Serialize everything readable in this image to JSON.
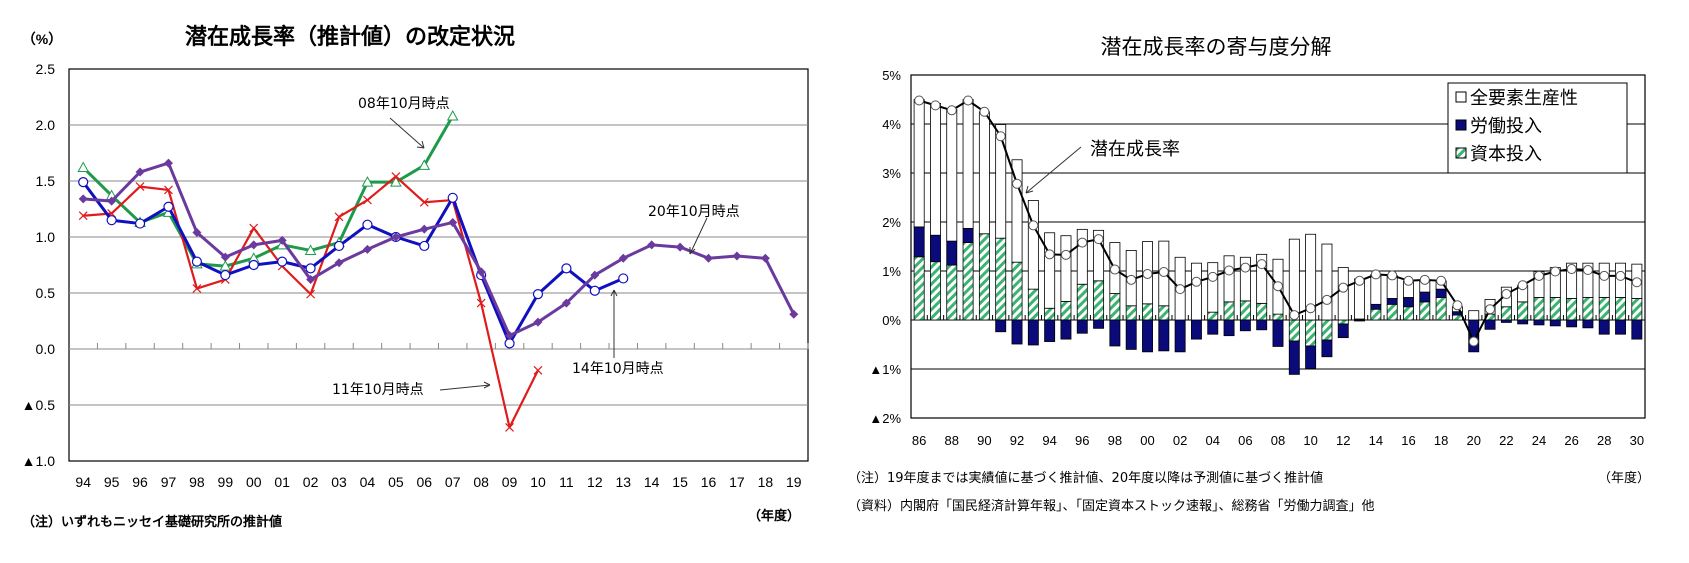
{
  "chart_data": [
    {
      "type": "line",
      "title": "潜在成長率（推計値）の改定状況",
      "ylabel": "（%）",
      "xlabel": "（年度）",
      "ylim": [
        -1.0,
        2.5
      ],
      "y_ticks": [
        2.5,
        2.0,
        1.5,
        1.0,
        0.5,
        0.0,
        -0.5,
        -1.0
      ],
      "y_tick_labels": [
        "2.5",
        "2.0",
        "1.5",
        "1.0",
        "0.5",
        "0.0",
        "▲0.5",
        "▲1.0"
      ],
      "grid": true,
      "categories": [
        "94",
        "95",
        "96",
        "97",
        "98",
        "99",
        "00",
        "01",
        "02",
        "03",
        "04",
        "05",
        "06",
        "07",
        "08",
        "09",
        "10",
        "11",
        "12",
        "13",
        "14",
        "15",
        "16",
        "17",
        "18",
        "19"
      ],
      "series": [
        {
          "name": "08年10月時点",
          "color": "#1f9a4a",
          "marker": "triangle-open",
          "values": [
            1.62,
            1.37,
            1.13,
            1.22,
            0.76,
            0.74,
            0.81,
            0.93,
            0.88,
            0.95,
            1.49,
            1.49,
            1.64,
            2.08,
            null,
            null,
            null,
            null,
            null,
            null,
            null,
            null,
            null,
            null,
            null,
            null
          ]
        },
        {
          "name": "11年10月時点",
          "color": "#e01b1b",
          "marker": "x",
          "values": [
            1.19,
            1.21,
            1.45,
            1.42,
            0.54,
            0.62,
            1.08,
            0.74,
            0.49,
            1.18,
            1.33,
            1.54,
            1.31,
            1.33,
            0.41,
            -0.7,
            -0.19,
            null,
            null,
            null,
            null,
            null,
            null,
            null,
            null,
            null
          ]
        },
        {
          "name": "14年10月時点",
          "color": "#1010c0",
          "marker": "circle-open",
          "values": [
            1.49,
            1.15,
            1.12,
            1.27,
            0.78,
            0.66,
            0.75,
            0.78,
            0.72,
            0.92,
            1.11,
            1.0,
            0.92,
            1.35,
            0.66,
            0.05,
            0.49,
            0.72,
            0.52,
            0.63,
            null,
            null,
            null,
            null,
            null,
            null
          ]
        },
        {
          "name": "20年10月時点",
          "color": "#6a3a9e",
          "marker": "diamond",
          "values": [
            1.34,
            1.32,
            1.58,
            1.66,
            1.04,
            0.82,
            0.93,
            0.97,
            0.62,
            0.77,
            0.89,
            1.0,
            1.07,
            1.13,
            0.69,
            0.12,
            0.24,
            0.41,
            0.66,
            0.81,
            0.93,
            0.91,
            0.81,
            0.83,
            0.81,
            0.31
          ]
        }
      ],
      "annotations": [
        "08年10月時点",
        "11年10月時点",
        "14年10月時点",
        "20年10月時点"
      ],
      "note": "（注）いずれもニッセイ基礎研究所の推計値"
    },
    {
      "type": "bar",
      "stacked": true,
      "title": "潜在成長率の寄与度分解",
      "xlabel": "（年度）",
      "ylim": [
        -2,
        5
      ],
      "y_ticks": [
        5,
        4,
        3,
        2,
        1,
        0,
        -1,
        -2
      ],
      "y_tick_labels": [
        "5%",
        "4%",
        "3%",
        "2%",
        "1%",
        "0%",
        "▲1%",
        "▲2%"
      ],
      "grid": true,
      "legend_position": "top-right",
      "categories": [
        "86",
        "87",
        "88",
        "89",
        "90",
        "91",
        "92",
        "93",
        "94",
        "95",
        "96",
        "97",
        "98",
        "99",
        "00",
        "01",
        "02",
        "03",
        "04",
        "05",
        "06",
        "07",
        "08",
        "09",
        "10",
        "11",
        "12",
        "13",
        "14",
        "15",
        "16",
        "17",
        "18",
        "19",
        "20",
        "21",
        "22",
        "23",
        "24",
        "25",
        "26",
        "27",
        "28",
        "29",
        "30"
      ],
      "x_tick_labels": [
        "86",
        "88",
        "90",
        "92",
        "94",
        "96",
        "98",
        "00",
        "02",
        "04",
        "06",
        "08",
        "10",
        "12",
        "14",
        "16",
        "18",
        "20",
        "22",
        "24",
        "26",
        "28",
        "30"
      ],
      "series": [
        {
          "name": "資本投入",
          "color": "#3cb371",
          "pattern": "hatched",
          "values": [
            1.29,
            1.19,
            1.12,
            1.58,
            1.76,
            1.67,
            1.18,
            0.63,
            0.24,
            0.38,
            0.73,
            0.8,
            0.54,
            0.29,
            0.33,
            0.29,
            0.0,
            0.0,
            0.16,
            0.37,
            0.39,
            0.34,
            0.12,
            -0.43,
            -0.53,
            -0.41,
            -0.08,
            0.02,
            0.22,
            0.32,
            0.27,
            0.37,
            0.46,
            0.1,
            0.0,
            0.12,
            0.27,
            0.37,
            0.46,
            0.46,
            0.44,
            0.46,
            0.46,
            0.46,
            0.44
          ]
        },
        {
          "name": "労働投入",
          "color": "#0a0a7a",
          "values": [
            0.61,
            0.54,
            0.49,
            0.29,
            0.0,
            -0.24,
            -0.49,
            -0.51,
            -0.44,
            -0.39,
            -0.27,
            -0.17,
            -0.53,
            -0.6,
            -0.65,
            -0.63,
            -0.65,
            -0.39,
            -0.29,
            -0.32,
            -0.22,
            -0.2,
            -0.54,
            -0.68,
            -0.46,
            -0.34,
            -0.28,
            -0.02,
            0.1,
            0.12,
            0.19,
            0.2,
            0.17,
            0.07,
            -0.65,
            -0.19,
            -0.05,
            -0.08,
            -0.1,
            -0.12,
            -0.14,
            -0.16,
            -0.29,
            -0.29,
            -0.39
          ]
        },
        {
          "name": "全要素生産性",
          "color": "#ffffff",
          "values": [
            2.6,
            2.69,
            2.69,
            2.63,
            2.49,
            2.32,
            2.09,
            1.81,
            1.54,
            1.34,
            1.12,
            1.03,
            1.04,
            1.13,
            1.27,
            1.32,
            1.28,
            1.16,
            1.01,
            0.94,
            0.89,
            1.0,
            1.12,
            1.65,
            1.75,
            1.55,
            1.07,
            0.82,
            0.61,
            0.47,
            0.34,
            0.25,
            0.17,
            0.1,
            0.19,
            0.3,
            0.4,
            0.34,
            0.53,
            0.61,
            0.72,
            0.7,
            0.7,
            0.7,
            0.7
          ]
        }
      ],
      "line": {
        "name": "潜在成長率",
        "color": "#000000",
        "marker": "circle-open",
        "values": [
          4.48,
          4.38,
          4.28,
          4.48,
          4.25,
          3.75,
          2.78,
          1.93,
          1.34,
          1.33,
          1.58,
          1.65,
          1.03,
          0.82,
          0.94,
          0.98,
          0.63,
          0.78,
          0.88,
          1.01,
          1.07,
          1.14,
          0.69,
          0.1,
          0.24,
          0.41,
          0.66,
          0.8,
          0.93,
          0.91,
          0.8,
          0.82,
          0.8,
          0.3,
          -0.44,
          0.22,
          0.53,
          0.71,
          0.9,
          0.99,
          1.04,
          1.02,
          0.9,
          0.9,
          0.77
        ]
      },
      "legend": [
        "全要素生産性",
        "労働投入",
        "資本投入"
      ],
      "annotation": "潜在成長率",
      "notes": [
        "（注）19年度までは実績値に基づく推計値、20年度以降は予測値に基づく推計値",
        "（資料）内閣府「国民経済計算年報」、「固定資本ストック速報」、総務省「労働力調査」他"
      ]
    }
  ]
}
